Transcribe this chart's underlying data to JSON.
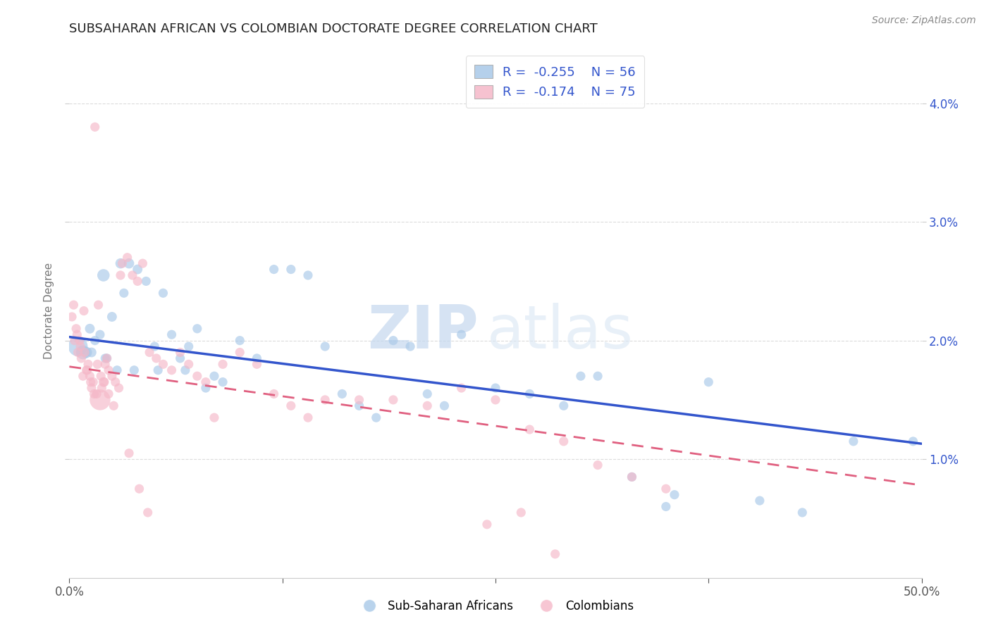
{
  "title": "SUBSAHARAN AFRICAN VS COLOMBIAN DOCTORATE DEGREE CORRELATION CHART",
  "source": "Source: ZipAtlas.com",
  "ylabel": "Doctorate Degree",
  "xlim": [
    0,
    50
  ],
  "ylim": [
    0,
    4.5
  ],
  "yticks": [
    1.0,
    2.0,
    3.0,
    4.0
  ],
  "watermark_zip": "ZIP",
  "watermark_atlas": "atlas",
  "blue_color": "#a8c8e8",
  "pink_color": "#f5b8c8",
  "blue_line_color": "#3355cc",
  "pink_line_color": "#e06080",
  "legend_r_blue": "-0.255",
  "legend_n_blue": "56",
  "legend_r_pink": "-0.174",
  "legend_n_pink": "75",
  "blue_scatter_x": [
    1.2,
    1.5,
    1.8,
    2.0,
    2.2,
    2.5,
    2.8,
    3.0,
    3.2,
    3.5,
    4.0,
    4.5,
    5.0,
    5.5,
    6.0,
    6.5,
    7.0,
    7.5,
    8.0,
    9.0,
    10.0,
    11.0,
    12.0,
    13.0,
    14.0,
    15.0,
    16.0,
    17.0,
    18.0,
    19.0,
    20.0,
    21.0,
    22.0,
    23.0,
    25.0,
    27.0,
    29.0,
    31.0,
    33.0,
    35.5,
    37.5,
    40.5,
    43.0,
    46.0,
    49.5,
    0.5,
    0.8,
    1.0,
    1.3,
    2.1,
    3.8,
    5.2,
    6.8,
    8.5,
    30.0,
    35.0
  ],
  "blue_scatter_y": [
    2.1,
    2.0,
    2.05,
    2.55,
    1.85,
    2.2,
    1.75,
    2.65,
    2.4,
    2.65,
    2.6,
    2.5,
    1.95,
    2.4,
    2.05,
    1.85,
    1.95,
    2.1,
    1.6,
    1.65,
    2.0,
    1.85,
    2.6,
    2.6,
    2.55,
    1.95,
    1.55,
    1.45,
    1.35,
    2.0,
    1.95,
    1.55,
    1.45,
    2.05,
    1.6,
    1.55,
    1.45,
    1.7,
    0.85,
    0.7,
    1.65,
    0.65,
    0.55,
    1.15,
    1.15,
    1.95,
    1.9,
    1.9,
    1.9,
    1.85,
    1.75,
    1.75,
    1.75,
    1.7,
    1.7,
    0.6
  ],
  "blue_scatter_size": [
    100,
    90,
    90,
    160,
    90,
    100,
    90,
    110,
    90,
    110,
    100,
    90,
    90,
    90,
    90,
    90,
    90,
    90,
    90,
    90,
    90,
    90,
    90,
    90,
    90,
    90,
    90,
    90,
    90,
    90,
    90,
    90,
    90,
    90,
    90,
    90,
    90,
    90,
    90,
    90,
    90,
    90,
    90,
    90,
    90,
    400,
    200,
    130,
    100,
    90,
    90,
    90,
    90,
    90,
    90,
    90
  ],
  "pink_scatter_x": [
    0.15,
    0.3,
    0.4,
    0.5,
    0.6,
    0.7,
    0.8,
    0.9,
    1.0,
    1.1,
    1.2,
    1.3,
    1.4,
    1.5,
    1.6,
    1.7,
    1.8,
    1.9,
    2.0,
    2.1,
    2.2,
    2.3,
    2.5,
    2.7,
    2.9,
    3.1,
    3.4,
    3.7,
    4.0,
    4.3,
    4.7,
    5.1,
    5.5,
    6.0,
    6.5,
    7.0,
    7.5,
    8.0,
    9.0,
    10.0,
    11.0,
    12.0,
    13.0,
    14.0,
    15.0,
    17.0,
    19.0,
    21.0,
    23.0,
    25.0,
    27.0,
    29.0,
    31.0,
    33.0,
    35.0,
    0.25,
    0.45,
    0.65,
    0.85,
    1.05,
    1.25,
    1.45,
    1.65,
    1.85,
    2.05,
    2.3,
    2.6,
    3.0,
    3.5,
    4.1,
    4.6,
    8.5,
    24.5,
    26.5,
    28.5
  ],
  "pink_scatter_y": [
    2.2,
    2.0,
    2.1,
    1.9,
    2.0,
    1.85,
    1.7,
    1.9,
    1.75,
    1.8,
    1.7,
    1.6,
    1.65,
    3.8,
    1.55,
    2.3,
    1.5,
    1.6,
    1.65,
    1.8,
    1.85,
    1.75,
    1.7,
    1.65,
    1.6,
    2.65,
    2.7,
    2.55,
    2.5,
    2.65,
    1.9,
    1.85,
    1.8,
    1.75,
    1.9,
    1.8,
    1.7,
    1.65,
    1.8,
    1.9,
    1.8,
    1.55,
    1.45,
    1.35,
    1.5,
    1.5,
    1.5,
    1.45,
    1.6,
    1.5,
    1.25,
    1.15,
    0.95,
    0.85,
    0.75,
    2.3,
    2.05,
    1.95,
    2.25,
    1.75,
    1.65,
    1.55,
    1.8,
    1.7,
    1.65,
    1.55,
    1.45,
    2.55,
    1.05,
    0.75,
    0.55,
    1.35,
    0.45,
    0.55,
    0.2
  ],
  "pink_scatter_size": [
    90,
    90,
    90,
    90,
    90,
    90,
    90,
    90,
    90,
    90,
    90,
    90,
    90,
    90,
    90,
    90,
    450,
    90,
    100,
    90,
    90,
    90,
    90,
    90,
    90,
    90,
    90,
    90,
    90,
    90,
    90,
    90,
    90,
    90,
    90,
    90,
    90,
    90,
    90,
    90,
    90,
    90,
    90,
    90,
    90,
    90,
    90,
    90,
    90,
    90,
    90,
    90,
    90,
    90,
    90,
    90,
    90,
    90,
    90,
    90,
    90,
    90,
    90,
    90,
    90,
    90,
    90,
    90,
    90,
    90,
    90,
    90,
    90,
    90,
    90
  ],
  "blue_reg_x0": 0,
  "blue_reg_x1": 50,
  "blue_reg_y0": 2.03,
  "blue_reg_y1": 1.13,
  "pink_reg_x0": 0,
  "pink_reg_x1": 50,
  "pink_reg_y0": 1.78,
  "pink_reg_y1": 0.78,
  "title_fontsize": 13,
  "tick_fontsize": 12,
  "source_fontsize": 10,
  "legend_fontsize": 13,
  "ylabel_fontsize": 11,
  "background_color": "#ffffff",
  "grid_color": "#cccccc",
  "grid_alpha": 0.7
}
